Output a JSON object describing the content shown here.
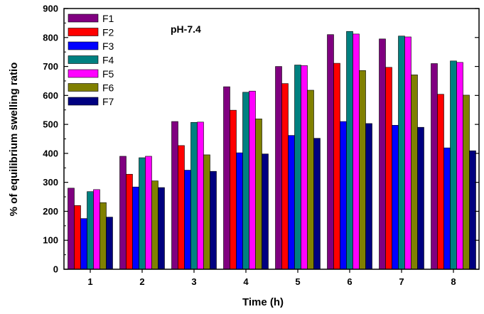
{
  "chart_data": {
    "type": "bar",
    "annotation": "pH-7.4",
    "xlabel": "Time (h)",
    "ylabel": "% of equilibrium swelling ratio",
    "ylim": [
      0,
      900
    ],
    "yticks": [
      0,
      100,
      200,
      300,
      400,
      500,
      600,
      700,
      800,
      900
    ],
    "categories": [
      "1",
      "2",
      "3",
      "4",
      "5",
      "6",
      "7",
      "8"
    ],
    "grid": false,
    "legend_position": "top-left",
    "series": [
      {
        "name": "F1",
        "color": "#800080",
        "values": [
          280,
          390,
          510,
          630,
          700,
          810,
          795,
          710
        ]
      },
      {
        "name": "F2",
        "color": "#ff0000",
        "values": [
          220,
          328,
          427,
          549,
          641,
          711,
          697,
          604
        ]
      },
      {
        "name": "F3",
        "color": "#0000ff",
        "values": [
          175,
          284,
          342,
          402,
          462,
          510,
          497,
          419
        ]
      },
      {
        "name": "F4",
        "color": "#008080",
        "values": [
          268,
          385,
          507,
          611,
          705,
          821,
          805,
          719
        ]
      },
      {
        "name": "F5",
        "color": "#ff00ff",
        "values": [
          275,
          390,
          508,
          615,
          703,
          812,
          802,
          714
        ]
      },
      {
        "name": "F6",
        "color": "#808000",
        "values": [
          230,
          305,
          395,
          519,
          618,
          686,
          671,
          601
        ]
      },
      {
        "name": "F7",
        "color": "#000080",
        "values": [
          180,
          282,
          338,
          398,
          452,
          503,
          490,
          409
        ]
      }
    ]
  }
}
